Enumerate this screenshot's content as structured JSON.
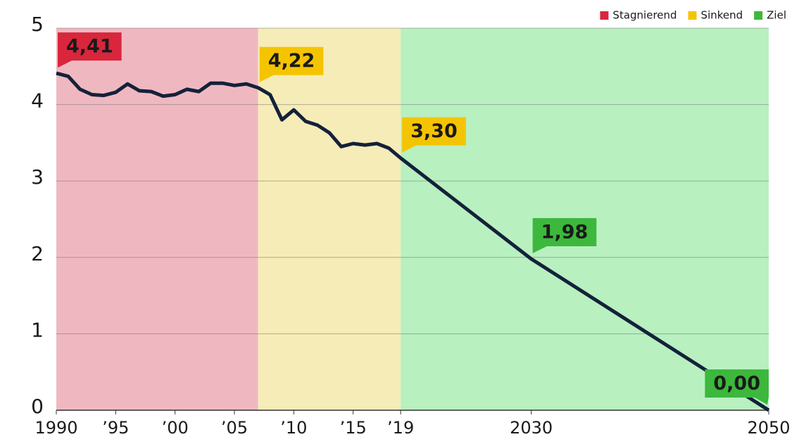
{
  "chart_data": {
    "type": "line",
    "regions": [
      {
        "name": "Stagnierend",
        "from": 1990,
        "to": 2007,
        "color": "#d9263c",
        "fill": "#efb8c0"
      },
      {
        "name": "Sinkend",
        "from": 2007,
        "to": 2019,
        "color": "#f5c400",
        "fill": "#f6ecb8"
      },
      {
        "name": "Ziel",
        "from": 2019,
        "to": 2050,
        "color": "#3cb83c",
        "fill": "#b8f0c0"
      }
    ],
    "x": [
      1990,
      1991,
      1992,
      1993,
      1994,
      1995,
      1996,
      1997,
      1998,
      1999,
      2000,
      2001,
      2002,
      2003,
      2004,
      2005,
      2006,
      2007,
      2008,
      2009,
      2010,
      2011,
      2012,
      2013,
      2014,
      2015,
      2016,
      2017,
      2018,
      2019,
      2030,
      2050
    ],
    "series": [
      {
        "color": "#14213a",
        "values": [
          4.41,
          4.37,
          4.2,
          4.13,
          4.12,
          4.16,
          4.27,
          4.18,
          4.17,
          4.11,
          4.13,
          4.2,
          4.17,
          4.28,
          4.28,
          4.25,
          4.27,
          4.22,
          4.13,
          3.8,
          3.93,
          3.78,
          3.73,
          3.63,
          3.45,
          3.49,
          3.47,
          3.49,
          3.43,
          3.3,
          1.98,
          0.0
        ]
      }
    ],
    "annotations": [
      {
        "x": 1990,
        "value": 4.41,
        "label": "4,41",
        "color": "#d9263c",
        "text_color": "#ffffff",
        "side": "right"
      },
      {
        "x": 2007,
        "value": 4.22,
        "label": "4,22",
        "color": "#f5c400",
        "text_color": "#1a1a1a",
        "side": "right"
      },
      {
        "x": 2019,
        "value": 3.3,
        "label": "3,30",
        "color": "#f5c400",
        "text_color": "#1a1a1a",
        "side": "right"
      },
      {
        "x": 2030,
        "value": 1.98,
        "label": "1,98",
        "color": "#3cb83c",
        "text_color": "#ffffff",
        "side": "right"
      },
      {
        "x": 2050,
        "value": 0.0,
        "label": "0,00",
        "color": "#3cb83c",
        "text_color": "#ffffff",
        "side": "left"
      }
    ],
    "xlim": [
      1990,
      2050
    ],
    "xticks": [
      {
        "value": 1990,
        "label": "1990"
      },
      {
        "value": 1995,
        "label": "’95"
      },
      {
        "value": 2000,
        "label": "’00"
      },
      {
        "value": 2005,
        "label": "’05"
      },
      {
        "value": 2010,
        "label": "’10"
      },
      {
        "value": 2015,
        "label": "’15"
      },
      {
        "value": 2019,
        "label": "’19"
      },
      {
        "value": 2030,
        "label": "2030"
      },
      {
        "value": 2050,
        "label": "2050"
      }
    ],
    "ylim": [
      0,
      5
    ],
    "yticks": [
      0,
      1,
      2,
      3,
      4,
      5
    ],
    "grid": true,
    "legend": "top-right"
  }
}
